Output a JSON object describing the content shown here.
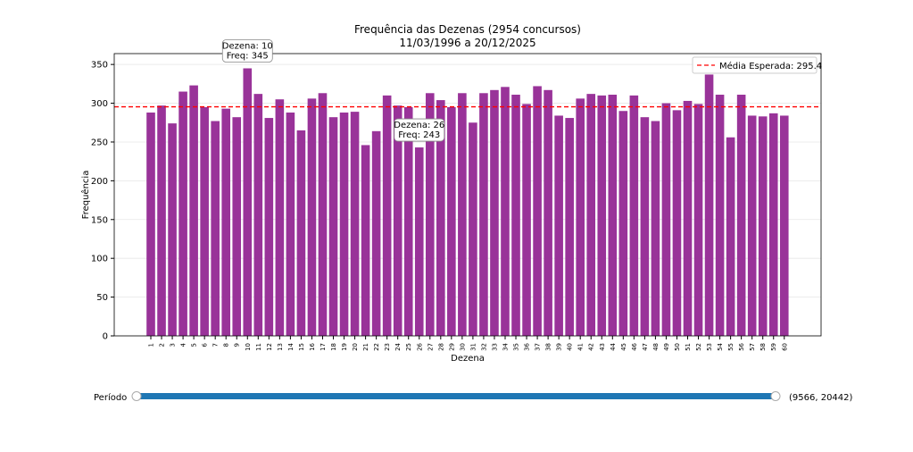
{
  "chart_data": {
    "type": "bar",
    "title": "Frequência das Dezenas (2954 concursos)",
    "subtitle": "11/03/1996 a 20/12/2025",
    "x_label": "Dezena",
    "y_label": "Frequência",
    "categories": [
      "1",
      "2",
      "3",
      "4",
      "5",
      "6",
      "7",
      "8",
      "9",
      "10",
      "11",
      "12",
      "13",
      "14",
      "15",
      "16",
      "17",
      "18",
      "19",
      "20",
      "21",
      "22",
      "23",
      "24",
      "25",
      "26",
      "27",
      "28",
      "29",
      "30",
      "31",
      "32",
      "33",
      "34",
      "35",
      "36",
      "37",
      "38",
      "39",
      "40",
      "41",
      "42",
      "43",
      "44",
      "45",
      "46",
      "47",
      "48",
      "49",
      "50",
      "51",
      "52",
      "53",
      "54",
      "55",
      "56",
      "57",
      "58",
      "59",
      "60"
    ],
    "values": [
      288,
      297,
      274,
      315,
      323,
      295,
      277,
      293,
      282,
      345,
      312,
      281,
      305,
      288,
      265,
      306,
      313,
      282,
      288,
      289,
      246,
      264,
      310,
      297,
      295,
      243,
      313,
      304,
      295,
      313,
      275,
      313,
      317,
      321,
      311,
      299,
      322,
      317,
      284,
      281,
      306,
      312,
      310,
      311,
      290,
      310,
      282,
      277,
      300,
      291,
      303,
      299,
      337,
      311,
      256,
      311,
      284,
      283,
      287,
      284
    ],
    "color": "#993399",
    "ylim": [
      0,
      364
    ],
    "yticks": [
      0,
      50,
      100,
      150,
      200,
      250,
      300,
      350
    ],
    "reference": {
      "value": 295.4,
      "label": "Média Esperada: 295.4",
      "color": "#ff0000"
    },
    "legend": "upper right",
    "annotations": [
      {
        "category": "10",
        "lines": [
          "Dezena: 10",
          "Freq: 345"
        ]
      },
      {
        "category": "26",
        "lines": [
          "Dezena: 26",
          "Freq: 243"
        ]
      }
    ]
  },
  "controls": {
    "slider_label": "Período",
    "slider_value_label": "(9566, 20442)",
    "slider_color": "#1f77b4"
  }
}
